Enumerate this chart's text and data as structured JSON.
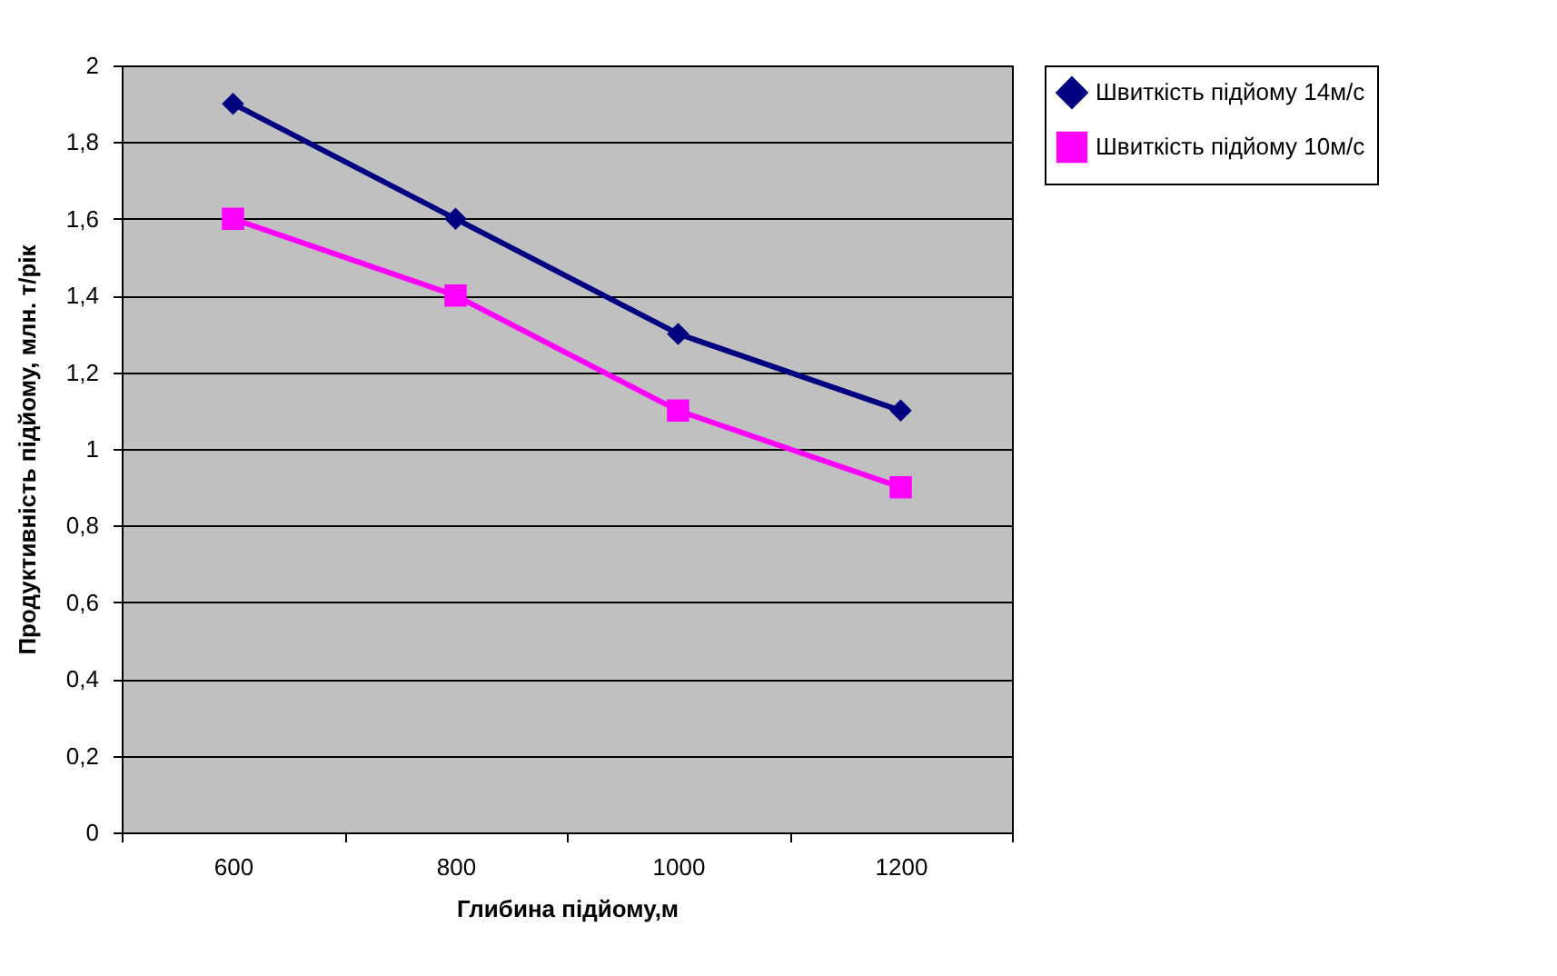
{
  "chart_data": {
    "type": "line",
    "xlabel": "Глибина підйому,м",
    "ylabel": "Продуктивність підйому, млн. т/рік",
    "categories": [
      "600",
      "800",
      "1000",
      "1200"
    ],
    "series": [
      {
        "name": "Швиткість підйому 14м/с",
        "color": "#000080",
        "marker": "diamond",
        "values": [
          1.9,
          1.6,
          1.3,
          1.1
        ]
      },
      {
        "name": "Швиткість підйому 10м/с",
        "color": "#ff00ff",
        "marker": "square",
        "values": [
          1.6,
          1.4,
          1.1,
          0.9
        ]
      }
    ],
    "ylim": [
      0,
      2
    ],
    "yticks": [
      0,
      {
        "value": 0.2,
        "label": "0,2"
      },
      {
        "value": 0.4,
        "label": "0,4"
      },
      {
        "value": 0.6,
        "label": "0,6"
      },
      {
        "value": 0.8,
        "label": "0,8"
      },
      1,
      {
        "value": 1.2,
        "label": "1,2"
      },
      {
        "value": 1.4,
        "label": "1,4"
      },
      {
        "value": 1.6,
        "label": "1,6"
      },
      {
        "value": 1.8,
        "label": "1,8"
      },
      2
    ],
    "grid": "y",
    "legend": "right",
    "line_style": "solid"
  }
}
